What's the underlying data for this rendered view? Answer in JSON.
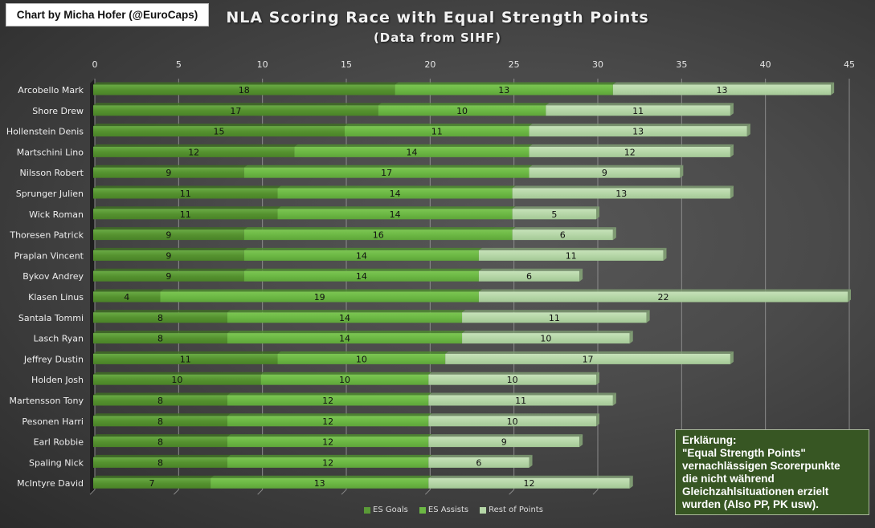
{
  "credit": "Chart by Micha Hofer (@EuroCaps)",
  "note": {
    "lines": [
      "Erklärung:",
      "\"Equal Strength Points\"",
      "vernachlässigen Scorerpunkte",
      "die nicht während",
      "Gleichzahlsituationen erzielt",
      "wurden (Also PP, PK usw)."
    ]
  },
  "colors": {
    "es_goals": "#5a9a37",
    "es_assists": "#6cb844",
    "rest": "#b5d6a7"
  },
  "chart_data": {
    "type": "bar",
    "orientation": "horizontal",
    "stacked": true,
    "title": "NLA Scoring Race with Equal Strength Points",
    "subtitle": "(Data from SIHF)",
    "xlabel": "",
    "ylabel": "",
    "xlim": [
      0,
      45
    ],
    "xticks": [
      0,
      5,
      10,
      15,
      20,
      25,
      30,
      35,
      40,
      45
    ],
    "grid": true,
    "legend_position": "bottom",
    "categories": [
      "Arcobello Mark",
      "Shore Drew",
      "Hollenstein Denis",
      "Martschini Lino",
      "Nilsson Robert",
      "Sprunger Julien",
      "Wick Roman",
      "Thoresen Patrick",
      "Praplan Vincent",
      "Bykov Andrey",
      "Klasen Linus",
      "Santala Tommi",
      "Lasch Ryan",
      "Jeffrey Dustin",
      "Holden Josh",
      "Martensson Tony",
      "Pesonen Harri",
      "Earl Robbie",
      "Spaling Nick",
      "McIntyre David"
    ],
    "series": [
      {
        "name": "ES Goals",
        "values": [
          18,
          17,
          15,
          12,
          9,
          11,
          11,
          9,
          9,
          9,
          4,
          8,
          8,
          11,
          10,
          8,
          8,
          8,
          8,
          7
        ]
      },
      {
        "name": "ES Assists",
        "values": [
          13,
          10,
          11,
          14,
          17,
          14,
          14,
          16,
          14,
          14,
          19,
          14,
          14,
          10,
          10,
          12,
          12,
          12,
          12,
          13
        ]
      },
      {
        "name": "Rest of Points",
        "values": [
          13,
          11,
          13,
          12,
          9,
          13,
          5,
          6,
          11,
          6,
          22,
          11,
          10,
          17,
          10,
          11,
          10,
          9,
          6,
          12
        ]
      }
    ]
  }
}
